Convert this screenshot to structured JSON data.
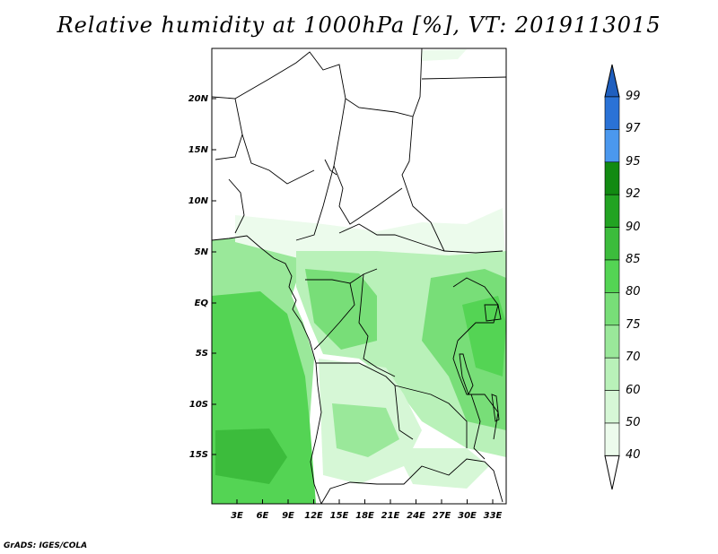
{
  "title": "Relative humidity at 1000hPa [%], VT: 2019113015",
  "credit": "GrADS: IGES/COLA",
  "map": {
    "lon_ticks": [
      "3E",
      "6E",
      "9E",
      "12E",
      "15E",
      "18E",
      "21E",
      "24E",
      "27E",
      "30E",
      "33E"
    ],
    "lat_ticks": [
      "20N",
      "15N",
      "10N",
      "5N",
      "EQ",
      "5S",
      "10S",
      "15S"
    ]
  },
  "colorbar": {
    "labels": [
      "99",
      "97",
      "95",
      "92",
      "90",
      "85",
      "80",
      "75",
      "70",
      "60",
      "50",
      "40"
    ],
    "colors": {
      "above_99": "#1f5fbf",
      "97_99": "#2a72d6",
      "95_97": "#4b98ee",
      "92_95": "#128a12",
      "90_92": "#22a322",
      "85_90": "#3cbc3c",
      "80_85": "#54d454",
      "75_80": "#78de78",
      "70_75": "#9ae89a",
      "60_70": "#b9f1b9",
      "50_60": "#d6f7d6",
      "40_50": "#ecfbec",
      "below_40": "#ffffff"
    }
  }
}
